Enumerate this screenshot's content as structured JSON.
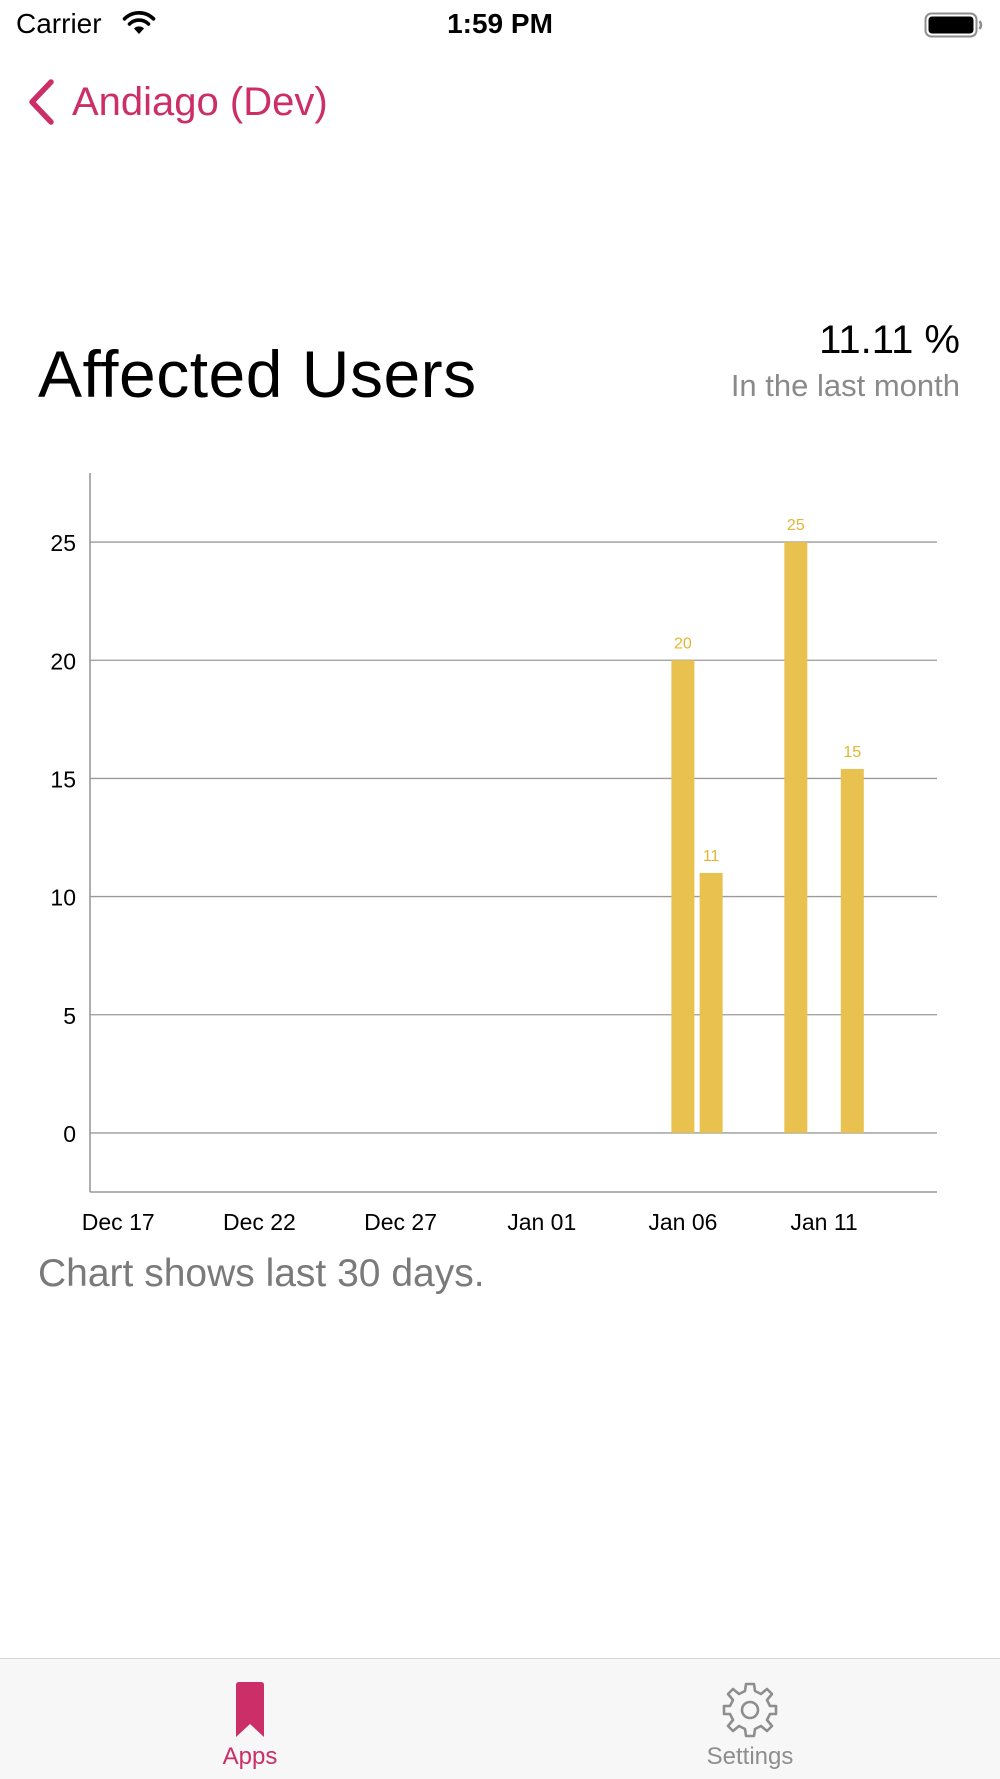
{
  "status_bar": {
    "carrier": "Carrier",
    "time": "1:59 PM"
  },
  "nav": {
    "back_label": "Andiago (Dev)",
    "accent_color": "#cc2e67"
  },
  "header": {
    "title": "Affected Users",
    "percent": "11.11 %",
    "percent_caption": "In the last month"
  },
  "chart_data": {
    "type": "bar",
    "bar_color": "#e8c14f",
    "label_color": "#e0b730",
    "x_tick_labels": [
      "Dec 17",
      "Dec 22",
      "Dec 27",
      "Jan 01",
      "Jan 06",
      "Jan 11"
    ],
    "y_tick_labels": [
      "0",
      "5",
      "10",
      "15",
      "20",
      "25"
    ],
    "ylim": [
      -2.5,
      27.5
    ],
    "xlim": [
      "2020-12-16",
      "2021-01-15"
    ],
    "bars": [
      {
        "date": "2021-01-06",
        "value": 20,
        "label": "20"
      },
      {
        "date": "2021-01-07",
        "value": 11,
        "label": "11"
      },
      {
        "date": "2021-01-10",
        "value": 25,
        "label": "25"
      },
      {
        "date": "2021-01-12",
        "value": 15.4,
        "label": "15"
      }
    ],
    "grid": true,
    "legend": "none"
  },
  "footnote": "Chart shows last 30 days.",
  "tab_bar": {
    "apps_label": "Apps",
    "settings_label": "Settings",
    "apps_icon": "bookmark-icon",
    "settings_icon": "gear-icon"
  }
}
